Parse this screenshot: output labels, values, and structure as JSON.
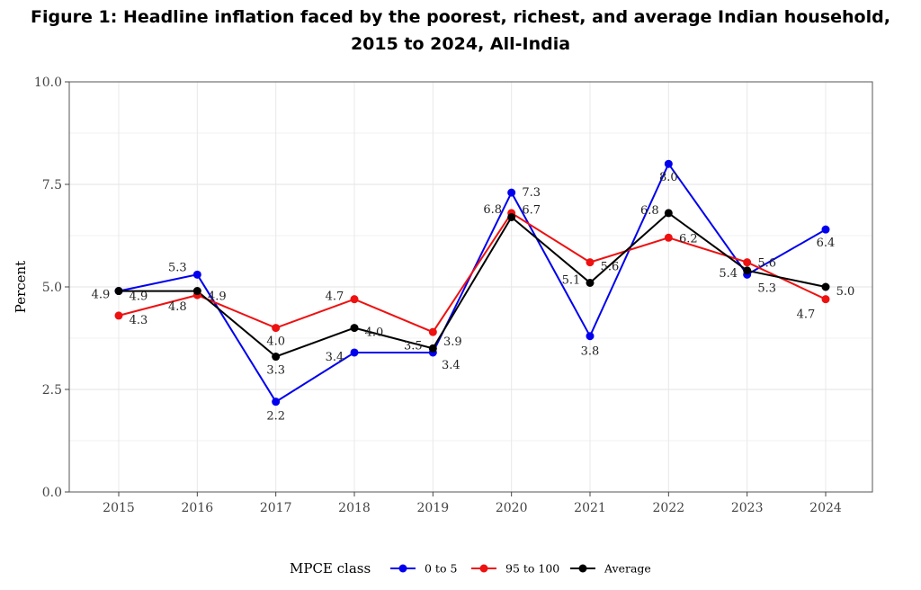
{
  "chart_data": {
    "type": "line",
    "title_line1": "Figure 1: Headline inflation faced by the poorest, richest, and average Indian household,",
    "title_line2": "2015 to 2024, All-India",
    "xlabel": "",
    "ylabel": "Percent",
    "x": [
      "2015",
      "2016",
      "2017",
      "2018",
      "2019",
      "2020",
      "2021",
      "2022",
      "2023",
      "2024"
    ],
    "ylim": [
      0,
      10
    ],
    "yticks": [
      "0.0",
      "2.5",
      "5.0",
      "7.5",
      "10.0"
    ],
    "grid": true,
    "legend_title": "MPCE class",
    "legend_position": "bottom",
    "series": [
      {
        "name": "0 to 5",
        "color": "#0000ee",
        "values": [
          4.9,
          5.3,
          2.2,
          3.4,
          3.4,
          7.3,
          3.8,
          8.0,
          5.3,
          6.4
        ],
        "labels": [
          "4.9",
          "5.3",
          "2.2",
          "3.4",
          "3.4",
          "7.3",
          "3.8",
          "8.0",
          "5.3",
          "6.4"
        ]
      },
      {
        "name": "95 to 100",
        "color": "#ee1111",
        "values": [
          4.3,
          4.8,
          4.0,
          4.7,
          3.9,
          6.8,
          5.6,
          6.2,
          5.6,
          4.7
        ],
        "labels": [
          "4.3",
          "4.8",
          "4.0",
          "4.7",
          "3.9",
          "6.8",
          "5.6",
          "6.2",
          "5.6",
          "4.7"
        ]
      },
      {
        "name": "Average",
        "color": "#000000",
        "values": [
          4.9,
          4.9,
          3.3,
          4.0,
          3.5,
          6.7,
          5.1,
          6.8,
          5.4,
          5.0
        ],
        "labels": [
          "4.9",
          "4.9",
          "3.3",
          "4.0",
          "3.5",
          "6.7",
          "5.1",
          "6.8",
          "5.4",
          "5.0"
        ]
      }
    ]
  }
}
